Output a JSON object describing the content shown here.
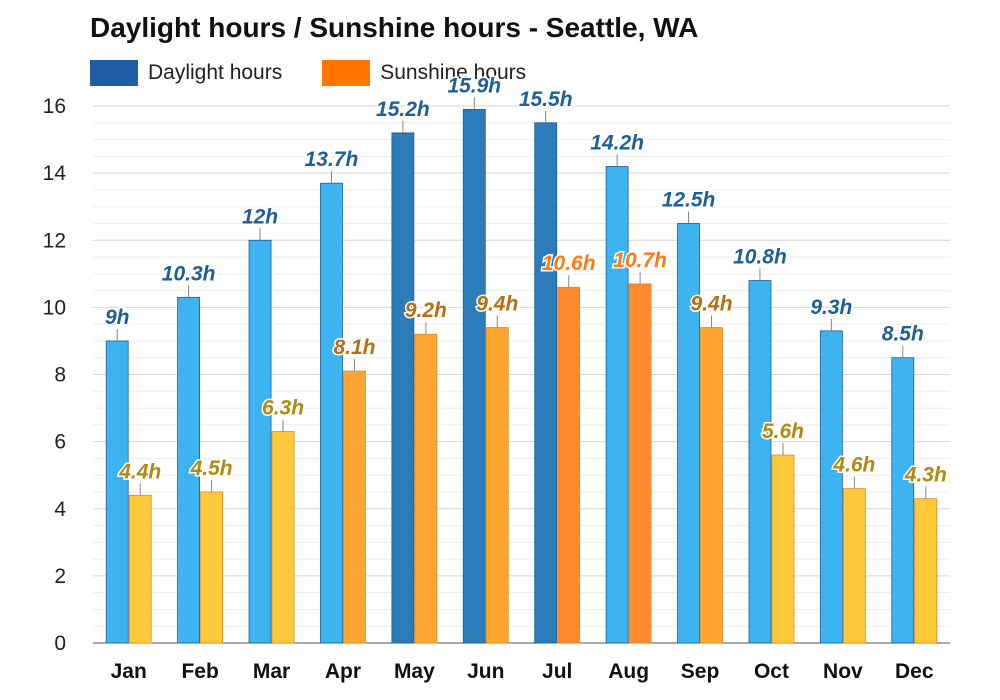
{
  "chart_data": {
    "type": "bar",
    "title": "Daylight hours / Sunshine hours - Seattle, WA",
    "categories": [
      "Jan",
      "Feb",
      "Mar",
      "Apr",
      "May",
      "Jun",
      "Jul",
      "Aug",
      "Sep",
      "Oct",
      "Nov",
      "Dec"
    ],
    "series": [
      {
        "name": "Daylight hours",
        "values": [
          9,
          10.3,
          12,
          13.7,
          15.2,
          15.9,
          15.5,
          14.2,
          12.5,
          10.8,
          9.3,
          8.5
        ],
        "labels": [
          "9h",
          "10.3h",
          "12h",
          "13.7h",
          "15.2h",
          "15.9h",
          "15.5h",
          "14.2h",
          "12.5h",
          "10.8h",
          "9.3h",
          "8.5h"
        ],
        "color": "#1f6db3"
      },
      {
        "name": "Sunshine hours",
        "values": [
          4.4,
          4.5,
          6.3,
          8.1,
          9.2,
          9.4,
          10.6,
          10.7,
          9.4,
          5.6,
          4.6,
          4.3
        ],
        "labels": [
          "4.4h",
          "4.5h",
          "6.3h",
          "8.1h",
          "9.2h",
          "9.4h",
          "10.6h",
          "10.7h",
          "9.4h",
          "5.6h",
          "4.6h",
          "4.3h"
        ],
        "color": "#ff7700"
      }
    ],
    "ylim": [
      0,
      16
    ],
    "yticks": [
      0,
      2,
      4,
      6,
      8,
      10,
      12,
      14,
      16
    ],
    "grid": true,
    "legend": "top-left",
    "colors": {
      "daylight_legend": "#1f5fa8",
      "sunshine_legend": "#ff7700",
      "daylight_short": "#3db4f0",
      "daylight_long": "#2b7cb8",
      "daylight_label": "#1d5f96",
      "sunshine_short": "#ffc93c",
      "sunshine_mid": "#ffa532",
      "sunshine_long": "#ff8a30",
      "sunshine_label_short": "#b08a12",
      "sunshine_label_mid": "#b86d10",
      "sunshine_label_long": "#ff7a10"
    }
  }
}
